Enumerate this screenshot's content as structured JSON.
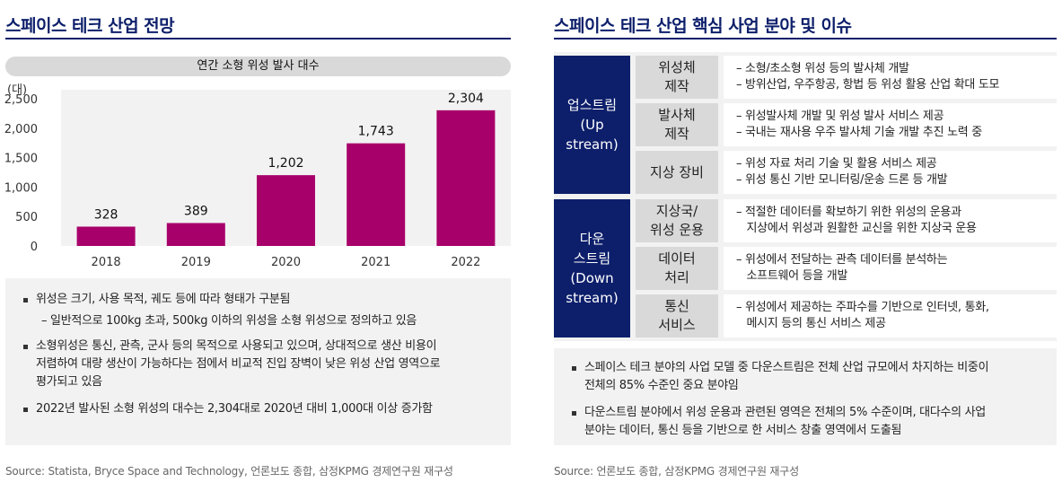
{
  "left": {
    "title": "스페이스 테크 산업 전망",
    "chart_header": "연간 소형 위성 발사 대수",
    "notes": [
      "위성은 크기, 사용 목적, 궤도 등에 따라 형태가 구분됨",
      "– 일반적으로 100kg 초과, 500kg 이하의 위성을 소형 위성으로 정의하고 있음",
      "소형위성은 통신, 관측, 군사 등의 목적으로 사용되고 있으며, 상대적으로 생산 비용이",
      "저렴하여 대량 생산이 가능하다는 점에서 비교적 진입 장벽이 낮은 위성 산업 영역으로",
      "평가되고 있음",
      "2022년 발사된 소형 위성의 대수는 2,304대로 2020년 대비 1,000대 이상 증가함"
    ],
    "source": "Source: Statista, Bryce Space and Technology, 언론보도 종합, 삼정KPMG 경제연구원 재구성"
  },
  "chart_data": {
    "type": "bar",
    "title": "연간 소형 위성 발사 대수",
    "unit_label": "(대)",
    "categories": [
      "2018",
      "2019",
      "2020",
      "2021",
      "2022"
    ],
    "values": [
      328,
      389,
      1202,
      1743,
      2304
    ],
    "value_labels": [
      "328",
      "389",
      "1,202",
      "1,743",
      "2,304"
    ],
    "yticks": [
      "0",
      "500",
      "1,000",
      "1,500",
      "2,000",
      "2,500"
    ],
    "ylim": [
      0,
      2500
    ],
    "bar_color": "#a8006a",
    "plot_bg": "#f2f2f2",
    "grid": false
  },
  "right": {
    "title": "스페이스 테크 산업 핵심 사업 분야 및 이슈",
    "groups": [
      {
        "label": [
          "업스트림",
          "(Up",
          "stream)"
        ]
      },
      {
        "label": [
          "다운",
          "스트림",
          "(Down",
          "stream)"
        ]
      }
    ],
    "rows": [
      {
        "category": [
          "위성체",
          "제작"
        ],
        "desc": [
          "– 소형/초소형 위성 등의 발사체 개발",
          "– 방위산업, 우주항공, 항법 등 위성 활용 산업 확대 도모"
        ]
      },
      {
        "category": [
          "발사체",
          "제작"
        ],
        "desc": [
          "– 위성발사체 개발 및 위성 발사 서비스 제공",
          "– 국내는 재사용 우주 발사체 기술 개발 추진 노력 중"
        ]
      },
      {
        "category": [
          "지상 장비"
        ],
        "desc": [
          "– 위성 자료 처리 기술 및 활용 서비스 제공",
          "– 위성 통신 기반 모니터링/운송 드론 등 개발"
        ]
      },
      {
        "category": [
          "지상국/",
          "위성 운용"
        ],
        "desc": [
          "– 적절한 데이터를 확보하기 위한 위성의 운용과",
          "   지상에서 위성과 원활한 교신을 위한 지상국 운용"
        ]
      },
      {
        "category": [
          "데이터",
          "처리"
        ],
        "desc": [
          "– 위성에서 전달하는 관측 데이터를 분석하는",
          "   소프트웨어 등을 개발"
        ]
      },
      {
        "category": [
          "통신",
          "서비스"
        ],
        "desc": [
          "– 위성에서 제공하는 주파수를 기반으로 인터넷, 통화,",
          "   메시지 등의 통신 서비스 제공"
        ]
      }
    ],
    "notes": [
      "스페이스 테크 분야의 사업 모델 중 다운스트림은 전체 산업 규모에서 차지하는 비중이",
      "전체의 85% 수준인 중요 분야임",
      "다운스트림 분야에서 위성 운용과 관련된 영역은 전체의 5% 수준이며, 대다수의 사업",
      "분야는 데이터, 통신 등을 기반으로 한 서비스 창출 영역에서 도출됨"
    ],
    "source": "Source: 언론보도 종합, 삼정KPMG 경제연구원 재구성"
  },
  "colors": {
    "navy": "#0d1f6b",
    "magenta": "#a8006a",
    "light_gray": "#f2f2f2",
    "mid_gray": "#d9d9d9"
  }
}
